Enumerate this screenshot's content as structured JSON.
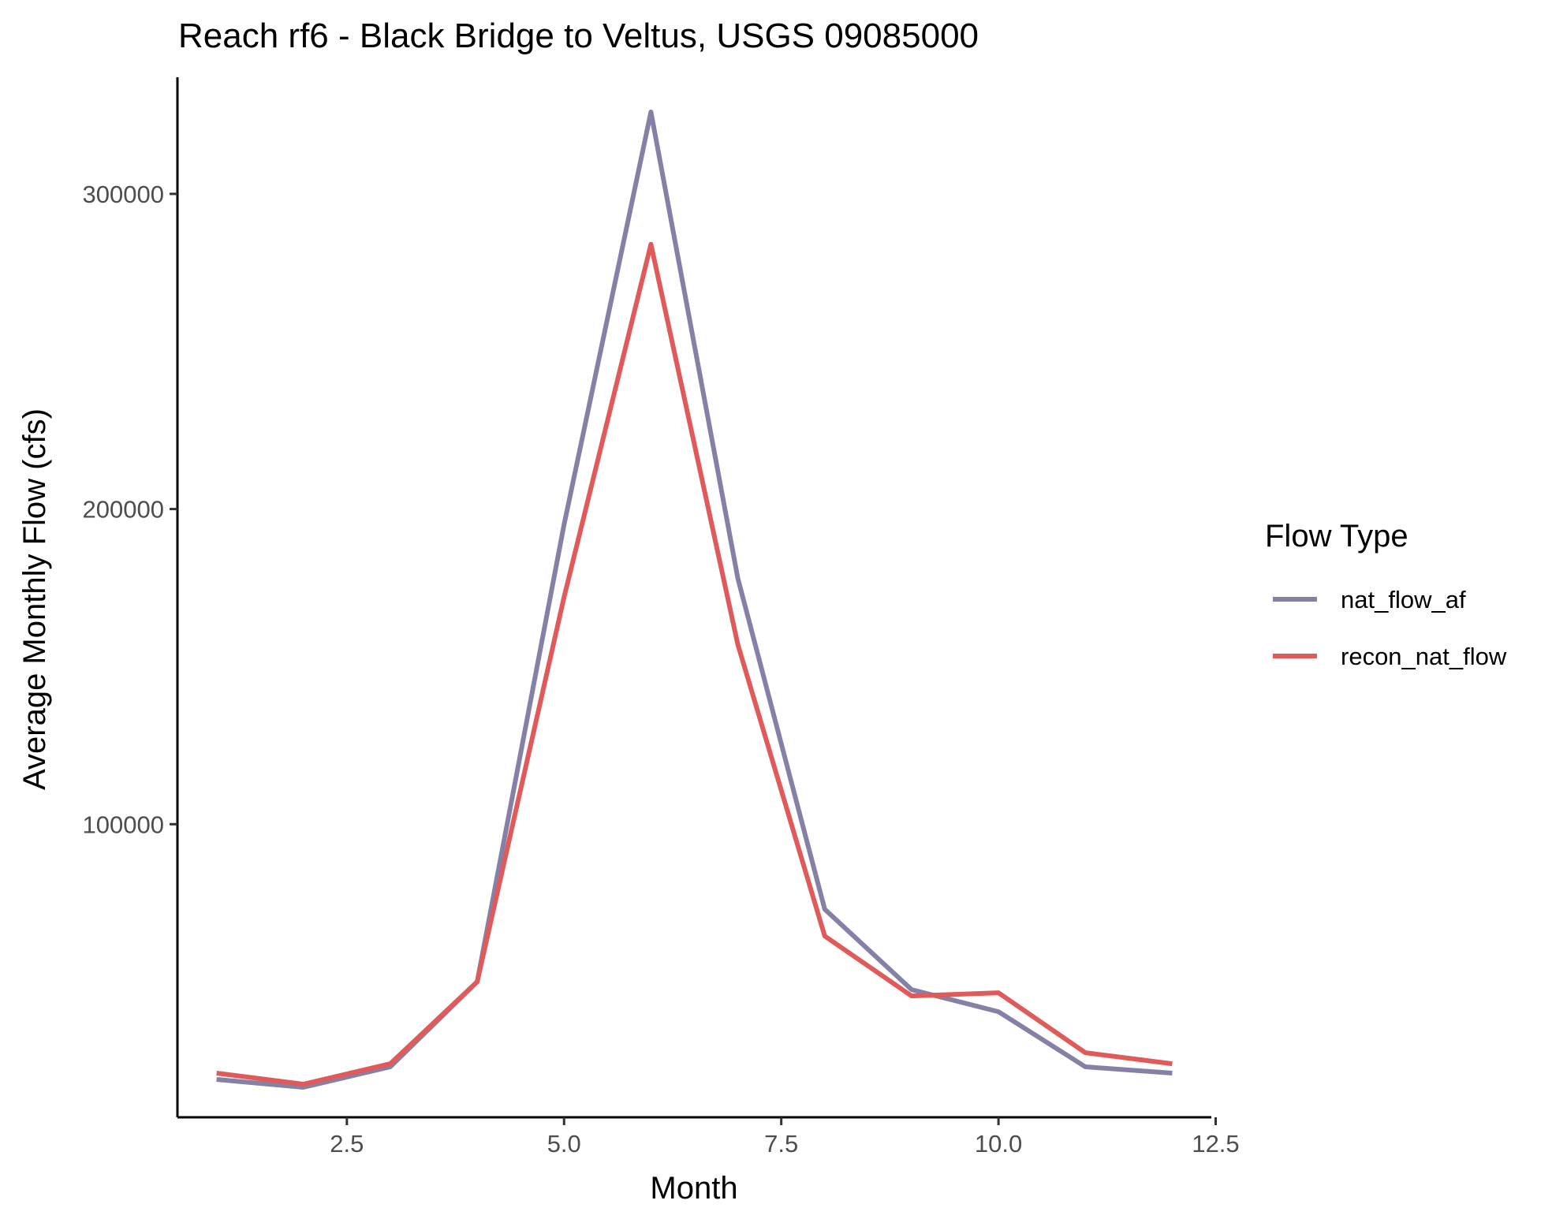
{
  "chart_data": {
    "type": "line",
    "title": "Reach rf6 - Black Bridge to Veltus, USGS 09085000",
    "xlabel": "Month",
    "ylabel": "Average Monthly Flow (cfs)",
    "xlim": [
      0.55,
      12.45
    ],
    "ylim": [
      7000,
      337000
    ],
    "x_ticks": [
      2.5,
      5.0,
      7.5,
      10.0,
      12.5
    ],
    "x_tick_labels": [
      "2.5",
      "5.0",
      "7.5",
      "10.0",
      "12.5"
    ],
    "y_ticks": [
      100000,
      200000,
      300000
    ],
    "y_tick_labels": [
      "100000",
      "200000",
      "300000"
    ],
    "grid": false,
    "legend": {
      "title": "Flow Type",
      "position": "right"
    },
    "x": [
      1,
      2,
      3,
      4,
      5,
      6,
      7,
      8,
      9,
      10,
      11,
      12
    ],
    "series": [
      {
        "name": "nat_flow_af",
        "color": "#8580a6",
        "values": [
          19000,
          16500,
          23000,
          50000,
          195000,
          326000,
          178000,
          73000,
          47500,
          40500,
          23000,
          21000
        ]
      },
      {
        "name": "recon_nat_flow",
        "color": "#e05a5a",
        "values": [
          21000,
          17500,
          24000,
          50000,
          172000,
          284000,
          157000,
          64500,
          45500,
          46500,
          27500,
          24000
        ]
      }
    ]
  }
}
